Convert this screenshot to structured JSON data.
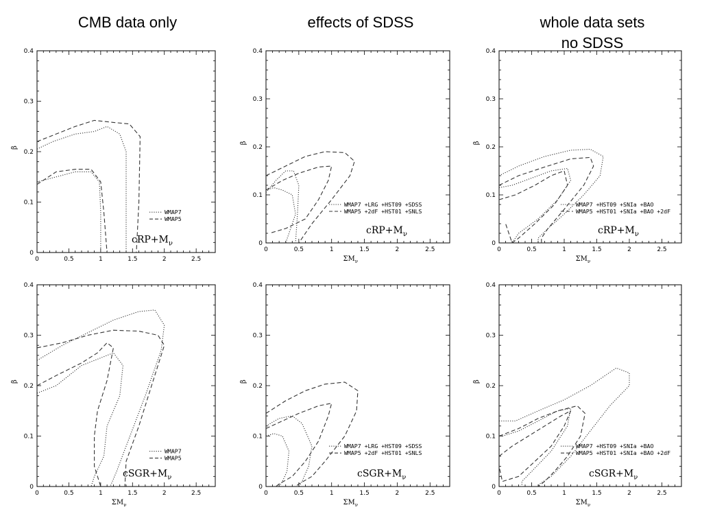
{
  "column_titles": [
    {
      "title": "CMB data only",
      "subtitle": ""
    },
    {
      "title": "effects of  SDSS",
      "subtitle": ""
    },
    {
      "title": "whole data sets",
      "subtitle": "no SDSS"
    }
  ],
  "colors": {
    "line": "#333333",
    "frame": "#000000"
  },
  "chart_data": [
    {
      "type": "line",
      "panel": "row1-col1",
      "model_label": {
        "main": "cRP+M",
        "sub": "ν"
      },
      "xlabel": "",
      "ylabel": "β",
      "xlim": [
        0,
        2.8
      ],
      "ylim": [
        0,
        0.4
      ],
      "xticks": [
        "0",
        "0.5",
        "1",
        "1.5",
        "2",
        "2.5"
      ],
      "yticks": [
        "0",
        "0.1",
        "0.2",
        "0.3",
        "0.4"
      ],
      "legend": [
        "WMAP7",
        "WMAP5"
      ],
      "legend_position": "lower-right",
      "series": [
        {
          "name": "WMAP7",
          "style": "dotted",
          "x": [
            0,
            0.25,
            0.6,
            0.9,
            1.1,
            1.3,
            1.4,
            1.4,
            1.4
          ],
          "y": [
            0.205,
            0.22,
            0.235,
            0.24,
            0.25,
            0.235,
            0.2,
            0.1,
            0.0
          ]
        },
        {
          "name": "WMAP7",
          "style": "dotted",
          "x": [
            0,
            0.3,
            0.6,
            0.85,
            0.98,
            1.0,
            1.0
          ],
          "y": [
            0.14,
            0.15,
            0.16,
            0.16,
            0.14,
            0.08,
            0.0
          ]
        },
        {
          "name": "WMAP5",
          "style": "dashed",
          "x": [
            0,
            0.3,
            0.6,
            0.9,
            1.2,
            1.45,
            1.62,
            1.6,
            1.56
          ],
          "y": [
            0.22,
            0.235,
            0.25,
            0.262,
            0.258,
            0.255,
            0.23,
            0.1,
            0.0
          ]
        },
        {
          "name": "WMAP5",
          "style": "dashed",
          "x": [
            0,
            0.3,
            0.6,
            0.85,
            1.0,
            1.05,
            1.1
          ],
          "y": [
            0.135,
            0.16,
            0.165,
            0.165,
            0.14,
            0.08,
            0.0
          ]
        }
      ]
    },
    {
      "type": "line",
      "panel": "row1-col2",
      "model_label": {
        "main": "cRP+M",
        "sub": "ν"
      },
      "xlabel": "ΣM",
      "xlabel_sub": "ν",
      "ylabel": "β",
      "xlim": [
        0,
        2.8
      ],
      "ylim": [
        0,
        0.4
      ],
      "xticks": [
        "0",
        "0.5",
        "1",
        "1.5",
        "2",
        "2.5"
      ],
      "yticks": [
        "0",
        "0.1",
        "0.2",
        "0.3",
        "0.4"
      ],
      "legend": [
        "WMAP7 +LRG +HST09 +SDSS",
        "WMAP5 +2dF +HST01 +SNLS"
      ],
      "legend_position": "lower-right",
      "series": [
        {
          "name": "WMAP7 +LRG +HST09 +SDSS",
          "style": "dotted",
          "x": [
            0,
            0.15,
            0.3,
            0.42,
            0.5,
            0.48,
            0.45
          ],
          "y": [
            0.105,
            0.13,
            0.15,
            0.15,
            0.12,
            0.06,
            0.0
          ]
        },
        {
          "name": "WMAP7 +LRG +HST09 +SDSS",
          "style": "dotted",
          "x": [
            0,
            0.12,
            0.25,
            0.4,
            0.45,
            0.35,
            0.3
          ],
          "y": [
            0.11,
            0.115,
            0.11,
            0.1,
            0.06,
            0.02,
            0.0
          ]
        },
        {
          "name": "WMAP5 +2dF +HST01 +SNLS",
          "style": "dashed",
          "x": [
            0,
            0.3,
            0.6,
            0.9,
            1.2,
            1.35,
            1.28,
            1.0,
            0.7,
            0.5
          ],
          "y": [
            0.14,
            0.16,
            0.18,
            0.19,
            0.188,
            0.17,
            0.14,
            0.09,
            0.04,
            0.0
          ]
        },
        {
          "name": "WMAP5 +2dF +HST01 +SNLS",
          "style": "dashed",
          "x": [
            0,
            0.25,
            0.5,
            0.8,
            1.0,
            0.95,
            0.8,
            0.6,
            0.3,
            0.05
          ],
          "y": [
            0.11,
            0.13,
            0.145,
            0.158,
            0.16,
            0.13,
            0.09,
            0.05,
            0.03,
            0.02
          ]
        }
      ]
    },
    {
      "type": "line",
      "panel": "row1-col3",
      "model_label": {
        "main": "cRP+M",
        "sub": "ν"
      },
      "xlabel": "ΣM",
      "xlabel_sub": "ν",
      "ylabel": "β",
      "xlim": [
        0,
        2.8
      ],
      "ylim": [
        0,
        0.4
      ],
      "xticks": [
        "0",
        "0.5",
        "1",
        "1.5",
        "2",
        "2.5"
      ],
      "yticks": [
        "0",
        "0.1",
        "0.2",
        "0.3",
        "0.4"
      ],
      "legend": [
        "WMAP7 +HST09 +SNIa +BAO",
        "WMAP5 +HST01 +SNIa +BAO +2dF"
      ],
      "legend_position": "lower-right",
      "series": [
        {
          "name": "WMAP7 +HST09 +SNIa +BAO",
          "style": "dotted",
          "x": [
            0,
            0.3,
            0.7,
            1.1,
            1.4,
            1.6,
            1.55,
            1.3,
            1.0,
            0.75,
            0.6,
            0.6
          ],
          "y": [
            0.14,
            0.16,
            0.18,
            0.193,
            0.195,
            0.18,
            0.14,
            0.1,
            0.06,
            0.03,
            0.01,
            0.0
          ]
        },
        {
          "name": "WMAP7 +HST09 +SNIa +BAO",
          "style": "dotted",
          "x": [
            0,
            0.2,
            0.5,
            0.8,
            1.05,
            1.1,
            0.9,
            0.6,
            0.3,
            0.2
          ],
          "y": [
            0.115,
            0.12,
            0.135,
            0.15,
            0.155,
            0.13,
            0.09,
            0.05,
            0.02,
            0.0
          ]
        },
        {
          "name": "WMAP5 +HST01 +SNIa +BAO +2dF",
          "style": "dashed",
          "x": [
            0,
            0.3,
            0.7,
            1.1,
            1.4,
            1.45,
            1.3,
            1.0,
            0.75,
            0.65,
            0.65
          ],
          "y": [
            0.12,
            0.14,
            0.158,
            0.175,
            0.178,
            0.16,
            0.12,
            0.07,
            0.03,
            0.01,
            0.0
          ]
        },
        {
          "name": "WMAP5 +HST01 +SNIa +BAO +2dF",
          "style": "dashed",
          "x": [
            0,
            0.25,
            0.55,
            0.8,
            1.0,
            1.05,
            0.85,
            0.55,
            0.3,
            0.2,
            0.1
          ],
          "y": [
            0.09,
            0.1,
            0.12,
            0.14,
            0.15,
            0.12,
            0.08,
            0.04,
            0.01,
            0.0,
            0.04
          ]
        }
      ]
    },
    {
      "type": "line",
      "panel": "row2-col1",
      "model_label": {
        "main": "cSGR+M",
        "sub": "ν"
      },
      "xlabel": "ΣM",
      "xlabel_sub": "ν",
      "ylabel": "β",
      "xlim": [
        0,
        2.8
      ],
      "ylim": [
        0,
        0.4
      ],
      "xticks": [
        "0",
        "0.5",
        "1",
        "1.5",
        "2",
        "2.5"
      ],
      "yticks": [
        "0",
        "0.1",
        "0.2",
        "0.3",
        "0.4"
      ],
      "legend": [
        "WMAP7",
        "WMAP5"
      ],
      "legend_position": "lower-right",
      "series": [
        {
          "name": "WMAP7",
          "style": "dotted",
          "x": [
            0,
            0.4,
            0.8,
            1.2,
            1.6,
            1.85,
            2.0,
            1.95,
            1.7,
            1.4,
            1.25,
            1.15
          ],
          "y": [
            0.25,
            0.28,
            0.305,
            0.33,
            0.347,
            0.35,
            0.32,
            0.27,
            0.18,
            0.08,
            0.03,
            0.0
          ]
        },
        {
          "name": "WMAP7",
          "style": "dotted",
          "x": [
            0,
            0.3,
            0.7,
            1.0,
            1.2,
            1.35,
            1.3,
            1.1,
            1.05,
            0.9,
            0.85
          ],
          "y": [
            0.185,
            0.2,
            0.24,
            0.255,
            0.265,
            0.24,
            0.18,
            0.12,
            0.06,
            0.02,
            0.0
          ]
        },
        {
          "name": "WMAP5",
          "style": "dashed",
          "x": [
            0,
            0.4,
            0.8,
            1.2,
            1.6,
            1.9,
            2.0,
            1.8,
            1.6,
            1.4,
            1.38
          ],
          "y": [
            0.275,
            0.285,
            0.3,
            0.31,
            0.308,
            0.3,
            0.28,
            0.2,
            0.12,
            0.05,
            0.0
          ]
        },
        {
          "name": "WMAP5",
          "style": "dashed",
          "x": [
            0,
            0.3,
            0.7,
            0.95,
            1.1,
            1.2,
            1.1,
            0.95,
            0.9,
            0.9,
            1.0
          ],
          "y": [
            0.2,
            0.22,
            0.245,
            0.265,
            0.285,
            0.275,
            0.21,
            0.15,
            0.1,
            0.04,
            0.0
          ]
        }
      ]
    },
    {
      "type": "line",
      "panel": "row2-col2",
      "model_label": {
        "main": "cSGR+M",
        "sub": "ν"
      },
      "xlabel": "ΣM",
      "xlabel_sub": "ν",
      "ylabel": "β",
      "xlim": [
        0,
        2.8
      ],
      "ylim": [
        0,
        0.4
      ],
      "xticks": [
        "0",
        "0.5",
        "1",
        "1.5",
        "2",
        "2.5"
      ],
      "yticks": [
        "0",
        "0.1",
        "0.2",
        "0.3",
        "0.4"
      ],
      "legend": [
        "WMAP7 +LRG +HST09 +SDSS",
        "WMAP5 +2dF +HST01 +SNLS"
      ],
      "legend_position": "lower-right",
      "series": [
        {
          "name": "WMAP7 +LRG +HST09 +SDSS",
          "style": "dotted",
          "x": [
            0,
            0.2,
            0.4,
            0.55,
            0.7,
            0.65,
            0.55,
            0.5
          ],
          "y": [
            0.12,
            0.135,
            0.14,
            0.125,
            0.08,
            0.04,
            0.01,
            0.0
          ]
        },
        {
          "name": "WMAP7 +LRG +HST09 +SDSS",
          "style": "dotted",
          "x": [
            0,
            0.12,
            0.25,
            0.35,
            0.32,
            0.25,
            0.2
          ],
          "y": [
            0.1,
            0.105,
            0.1,
            0.07,
            0.03,
            0.01,
            0.0
          ]
        },
        {
          "name": "WMAP5 +2dF +HST01 +SNLS",
          "style": "dashed",
          "x": [
            0,
            0.3,
            0.6,
            0.9,
            1.2,
            1.4,
            1.38,
            1.2,
            0.9,
            0.7,
            0.5,
            0.45
          ],
          "y": [
            0.145,
            0.17,
            0.19,
            0.203,
            0.207,
            0.19,
            0.15,
            0.1,
            0.05,
            0.02,
            0.005,
            0.0
          ]
        },
        {
          "name": "WMAP5 +2dF +HST01 +SNLS",
          "style": "dashed",
          "x": [
            0,
            0.25,
            0.5,
            0.8,
            1.0,
            0.95,
            0.8,
            0.6,
            0.4,
            0.2,
            0.15
          ],
          "y": [
            0.115,
            0.13,
            0.145,
            0.16,
            0.165,
            0.14,
            0.09,
            0.05,
            0.02,
            0.005,
            0.0
          ]
        }
      ]
    },
    {
      "type": "line",
      "panel": "row2-col3",
      "model_label": {
        "main": "cSGR+M",
        "sub": "ν"
      },
      "xlabel": "ΣM",
      "xlabel_sub": "ν",
      "ylabel": "β",
      "xlim": [
        0,
        2.8
      ],
      "ylim": [
        0,
        0.4
      ],
      "xticks": [
        "0",
        "0.5",
        "1",
        "1.5",
        "2",
        "2.5"
      ],
      "yticks": [
        "0",
        "0.1",
        "0.2",
        "0.3",
        "0.4"
      ],
      "legend": [
        "WMAP7 +HST09 +SNIa +BAO",
        "WMAP5 +HST01 +SNIa +BAO +2dF"
      ],
      "legend_position": "lower-right",
      "series": [
        {
          "name": "WMAP7 +HST09 +SNIa +BAO",
          "style": "dotted",
          "x": [
            0,
            0.25,
            0.6,
            1.0,
            1.4,
            1.8,
            2.0,
            2.0,
            1.7,
            1.4,
            1.1,
            0.8,
            0.62,
            0.6
          ],
          "y": [
            0.13,
            0.13,
            0.15,
            0.172,
            0.2,
            0.235,
            0.225,
            0.2,
            0.16,
            0.11,
            0.06,
            0.02,
            0.005,
            0.0
          ]
        },
        {
          "name": "WMAP7 +HST09 +SNIa +BAO",
          "style": "dotted",
          "x": [
            0.05,
            0.3,
            0.6,
            0.9,
            1.1,
            1.05,
            0.8,
            0.5,
            0.35,
            0.35
          ],
          "y": [
            0.1,
            0.11,
            0.13,
            0.15,
            0.155,
            0.12,
            0.07,
            0.03,
            0.01,
            0.0
          ]
        },
        {
          "name": "WMAP5 +HST01 +SNIa +BAO +2dF",
          "style": "dashed",
          "x": [
            0,
            0.3,
            0.6,
            0.9,
            1.2,
            1.32,
            1.25,
            1.05,
            0.85,
            0.7,
            0.6
          ],
          "y": [
            0.1,
            0.115,
            0.135,
            0.15,
            0.16,
            0.145,
            0.1,
            0.06,
            0.03,
            0.01,
            0.0
          ]
        },
        {
          "name": "WMAP5 +HST01 +SNIa +BAO +2dF",
          "style": "dashed",
          "x": [
            0,
            0.2,
            0.45,
            0.7,
            0.95,
            1.1,
            1.0,
            0.8,
            0.55,
            0.3,
            0.05,
            0.0
          ],
          "y": [
            0.06,
            0.08,
            0.1,
            0.12,
            0.14,
            0.15,
            0.12,
            0.08,
            0.05,
            0.02,
            0.01,
            0.04
          ]
        }
      ]
    }
  ]
}
